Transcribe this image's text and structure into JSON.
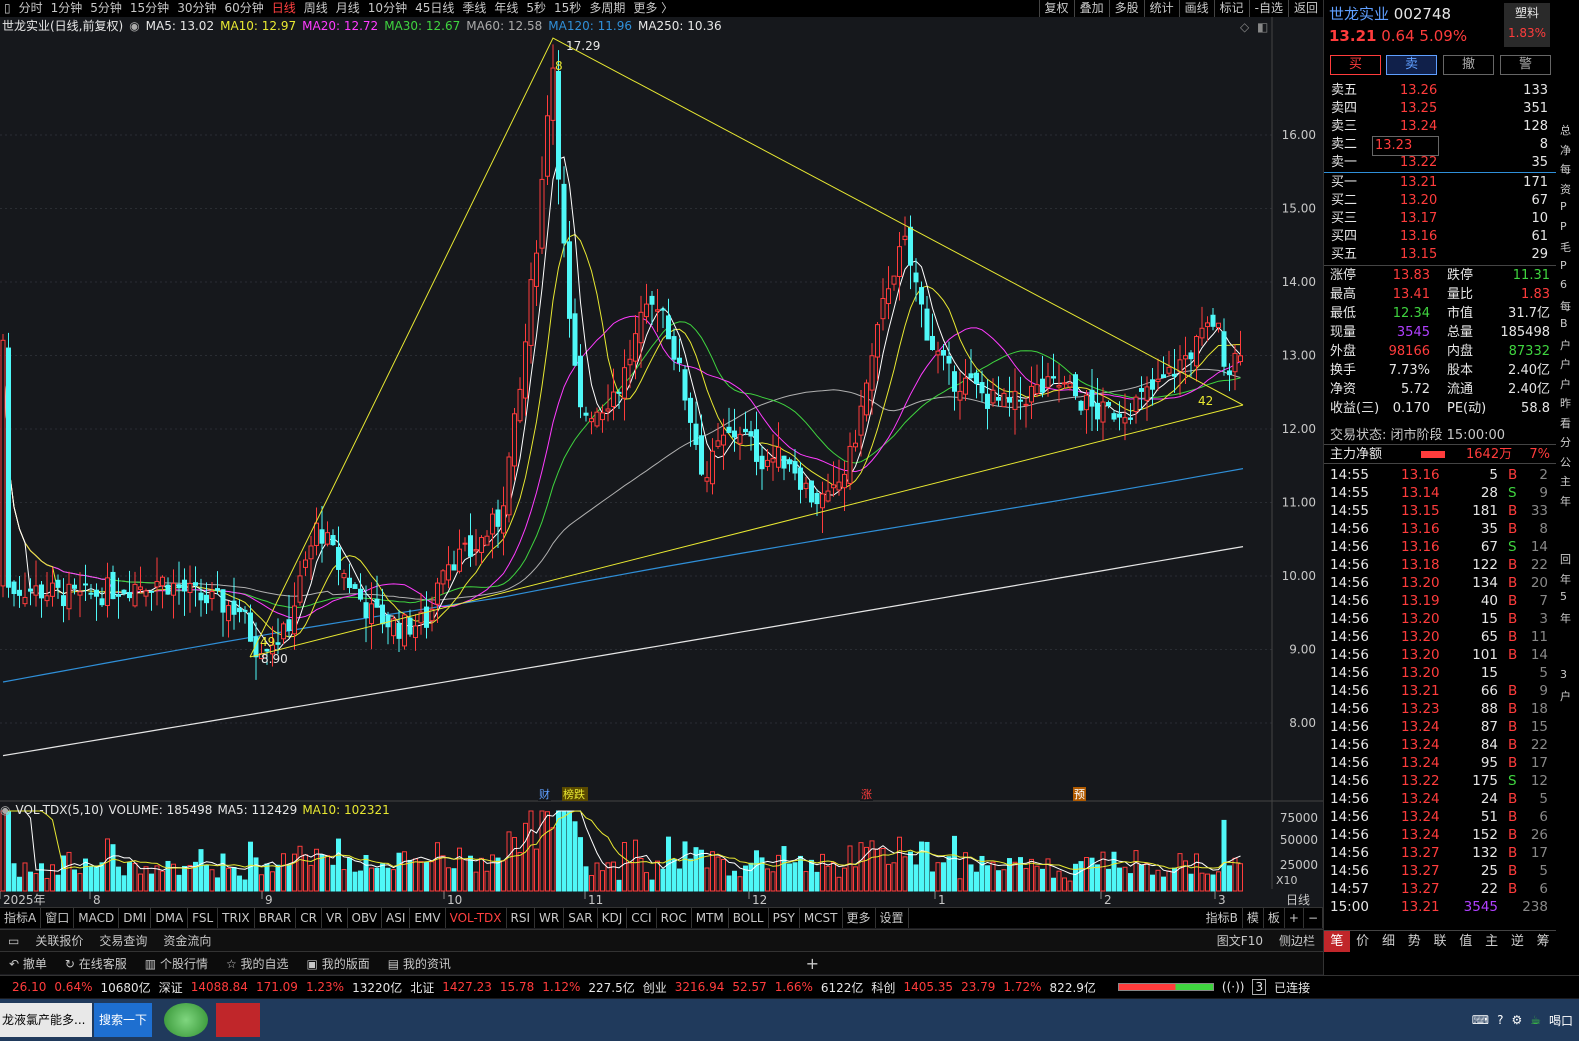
{
  "topbar": {
    "items": [
      "分时",
      "1分钟",
      "5分钟",
      "15分钟",
      "30分钟",
      "60分钟",
      "日线",
      "周线",
      "月线",
      "10分钟",
      "45日线",
      "季线",
      "年线",
      "5秒",
      "15秒",
      "多周期",
      "更多 〉"
    ],
    "active_index": 6,
    "right": [
      "复权",
      "叠加",
      "多股",
      "统计",
      "画线",
      "标记",
      "-自选",
      "返回"
    ]
  },
  "legend": {
    "name": "世龙实业(日线,前复权)",
    "ma5": "MA5: 13.02",
    "ma10": "MA10: 12.97",
    "ma20": "MA20: 12.72",
    "ma30": "MA30: 12.67",
    "ma60": "MA60: 12.58",
    "ma120": "MA120: 11.96",
    "ma250": "MA250: 10.36"
  },
  "vol_legend": {
    "name": "VOL-TDX(5,10)",
    "volume": "VOLUME: 185498",
    "ma5": "MA5: 112429",
    "ma10": "MA10: 102321"
  },
  "chart_data": {
    "type": "candlestick",
    "price_axis": [
      "16.00",
      "15.00",
      "14.00",
      "13.00",
      "12.00",
      "11.00",
      "10.00",
      "9.00",
      "8.00"
    ],
    "price_range": [
      7.0,
      17.7
    ],
    "vol_axis": [
      "75000",
      "50000",
      "25000"
    ],
    "vol_unit": "X10",
    "x_labels": [
      "2025年",
      "8",
      "9",
      "10",
      "11",
      "12",
      "1",
      "2",
      "3"
    ],
    "high_mark": "17.29",
    "low_mark": "8.90",
    "annot_a": "49",
    "annot_b": "8",
    "annot_c": "42",
    "events": [
      "财",
      "榜跌",
      "涨",
      "预"
    ],
    "period_label": "日线"
  },
  "tabs": {
    "items": [
      "指标A",
      "窗口",
      "MACD",
      "DMI",
      "DMA",
      "FSL",
      "TRIX",
      "BRAR",
      "CR",
      "VR",
      "OBV",
      "ASI",
      "EMV",
      "VOL-TDX",
      "RSI",
      "WR",
      "SAR",
      "KDJ",
      "CCI",
      "ROC",
      "MTM",
      "BOLL",
      "PSY",
      "MCST",
      "更多",
      "设置"
    ],
    "active_index": 13,
    "right": [
      "指标B",
      "模",
      "板",
      "+",
      "−"
    ]
  },
  "bar2": {
    "items": [
      "关联报价",
      "交易查询",
      "资金流向"
    ],
    "right": [
      "图文F10",
      "侧边栏"
    ]
  },
  "bar3": {
    "items": [
      "撤单",
      "在线客服",
      "个股行情",
      "我的自选",
      "我的版面",
      "我的资讯"
    ]
  },
  "status": {
    "a_val": "26.10",
    "a_pct": "0.64%",
    "a_amt": "10680亿",
    "sz_label": "深证",
    "sz_val": "14088.84",
    "sz_chg": "171.09",
    "sz_pct": "1.23%",
    "sz_amt": "13220亿",
    "bz_label": "北证",
    "bz_val": "1427.23",
    "bz_chg": "15.78",
    "bz_pct": "1.12%",
    "bz_amt": "227.5亿",
    "cy_label": "创业",
    "cy_val": "3216.94",
    "cy_chg": "52.57",
    "cy_pct": "1.66%",
    "cy_amt": "6122亿",
    "kc_label": "科创",
    "kc_val": "1405.35",
    "kc_chg": "23.79",
    "kc_pct": "1.72%",
    "kc_amt": "822.9亿",
    "conn": "已连接",
    "conn_num": "3"
  },
  "taskbar": {
    "item1": "龙液氯产能多...",
    "item2": "搜索一下",
    "clock": "喝口"
  },
  "stock": {
    "name": "世龙实业",
    "code": "002748",
    "price": "13.21",
    "chg": "0.64",
    "pct": "5.09%",
    "tag": "塑料",
    "tag_pct": "1.83%",
    "buttons": [
      "买",
      "卖",
      "撤",
      "警"
    ]
  },
  "asks": [
    {
      "l": "卖五",
      "p": "13.26",
      "v": "133"
    },
    {
      "l": "卖四",
      "p": "13.25",
      "v": "351"
    },
    {
      "l": "卖三",
      "p": "13.24",
      "v": "128"
    },
    {
      "l": "卖二",
      "p": "13.23",
      "v": "8"
    },
    {
      "l": "卖一",
      "p": "13.22",
      "v": "35"
    }
  ],
  "bids": [
    {
      "l": "买一",
      "p": "13.21",
      "v": "171"
    },
    {
      "l": "买二",
      "p": "13.20",
      "v": "67"
    },
    {
      "l": "买三",
      "p": "13.17",
      "v": "10"
    },
    {
      "l": "买四",
      "p": "13.16",
      "v": "61"
    },
    {
      "l": "买五",
      "p": "13.15",
      "v": "29"
    }
  ],
  "stats": [
    {
      "l1": "涨停",
      "v1": "13.83",
      "c1": "red",
      "l2": "跌停",
      "v2": "11.31",
      "c2": "green"
    },
    {
      "l1": "最高",
      "v1": "13.41",
      "c1": "red",
      "l2": "量比",
      "v2": "1.83",
      "c2": "red"
    },
    {
      "l1": "最低",
      "v1": "12.34",
      "c1": "green",
      "l2": "市值",
      "v2": "31.7亿",
      "c2": "white"
    },
    {
      "l1": "现量",
      "v1": "3545",
      "c1": "purple",
      "l2": "总量",
      "v2": "185498",
      "c2": "white"
    },
    {
      "l1": "外盘",
      "v1": "98166",
      "c1": "red",
      "l2": "内盘",
      "v2": "87332",
      "c2": "green"
    },
    {
      "l1": "换手",
      "v1": "7.73%",
      "c1": "white",
      "l2": "股本",
      "v2": "2.40亿",
      "c2": "white"
    },
    {
      "l1": "净资",
      "v1": "5.72",
      "c1": "white",
      "l2": "流通",
      "v2": "2.40亿",
      "c2": "white"
    },
    {
      "l1": "收益(三)",
      "v1": "0.170",
      "c1": "white",
      "l2": "PE(动)",
      "v2": "58.8",
      "c2": "white"
    }
  ],
  "trade_state": "交易状态: 闭市阶段 15:00:00",
  "flow": {
    "label": "主力净额",
    "val": "1642万",
    "pct": "7%"
  },
  "ticks": [
    {
      "t": "14:55",
      "p": "13.16",
      "v": "5",
      "bs": "B",
      "n": "2"
    },
    {
      "t": "14:55",
      "p": "13.14",
      "v": "28",
      "bs": "S",
      "n": "9"
    },
    {
      "t": "14:55",
      "p": "13.15",
      "v": "181",
      "bs": "B",
      "n": "33"
    },
    {
      "t": "14:56",
      "p": "13.16",
      "v": "35",
      "bs": "B",
      "n": "8"
    },
    {
      "t": "14:56",
      "p": "13.16",
      "v": "67",
      "bs": "S",
      "n": "14"
    },
    {
      "t": "14:56",
      "p": "13.18",
      "v": "122",
      "bs": "B",
      "n": "22"
    },
    {
      "t": "14:56",
      "p": "13.20",
      "v": "134",
      "bs": "B",
      "n": "20"
    },
    {
      "t": "14:56",
      "p": "13.19",
      "v": "40",
      "bs": "B",
      "n": "7"
    },
    {
      "t": "14:56",
      "p": "13.20",
      "v": "15",
      "bs": "B",
      "n": "3"
    },
    {
      "t": "14:56",
      "p": "13.20",
      "v": "65",
      "bs": "B",
      "n": "11"
    },
    {
      "t": "14:56",
      "p": "13.20",
      "v": "101",
      "bs": "B",
      "n": "14"
    },
    {
      "t": "14:56",
      "p": "13.20",
      "v": "15",
      "bs": "",
      "n": "5"
    },
    {
      "t": "14:56",
      "p": "13.21",
      "v": "66",
      "bs": "B",
      "n": "9"
    },
    {
      "t": "14:56",
      "p": "13.23",
      "v": "88",
      "bs": "B",
      "n": "18"
    },
    {
      "t": "14:56",
      "p": "13.24",
      "v": "87",
      "bs": "B",
      "n": "15"
    },
    {
      "t": "14:56",
      "p": "13.24",
      "v": "84",
      "bs": "B",
      "n": "22"
    },
    {
      "t": "14:56",
      "p": "13.24",
      "v": "95",
      "bs": "B",
      "n": "17"
    },
    {
      "t": "14:56",
      "p": "13.22",
      "v": "175",
      "bs": "S",
      "n": "12"
    },
    {
      "t": "14:56",
      "p": "13.24",
      "v": "24",
      "bs": "B",
      "n": "5"
    },
    {
      "t": "14:56",
      "p": "13.24",
      "v": "51",
      "bs": "B",
      "n": "6"
    },
    {
      "t": "14:56",
      "p": "13.24",
      "v": "152",
      "bs": "B",
      "n": "26"
    },
    {
      "t": "14:56",
      "p": "13.27",
      "v": "132",
      "bs": "B",
      "n": "17"
    },
    {
      "t": "14:56",
      "p": "13.27",
      "v": "25",
      "bs": "B",
      "n": "5"
    },
    {
      "t": "14:57",
      "p": "13.27",
      "v": "22",
      "bs": "B",
      "n": "6"
    },
    {
      "t": "15:00",
      "p": "13.21",
      "v": "3545",
      "bs": "",
      "n": "238"
    }
  ],
  "right_tabs": [
    "笔",
    "价",
    "细",
    "势",
    "联",
    "值",
    "主",
    "逆",
    "筹"
  ],
  "far_right": [
    "总",
    "净",
    "每",
    "资",
    "P",
    "P",
    "毛",
    "P",
    "6",
    "每",
    "B",
    "户",
    "户",
    "户",
    "昨",
    "看",
    "分",
    "公",
    "主",
    "年",
    "",
    "",
    "回",
    "年",
    "5",
    "年",
    "",
    "",
    "3",
    "户"
  ]
}
